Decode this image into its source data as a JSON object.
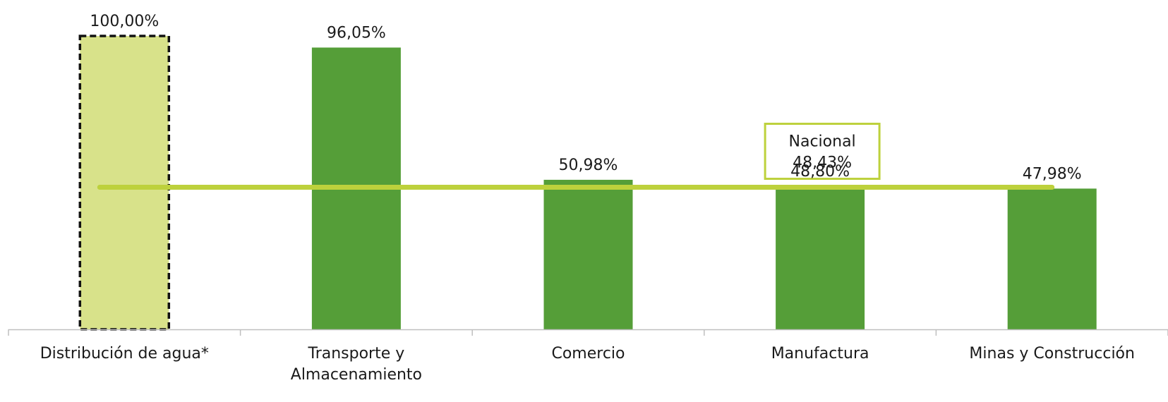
{
  "chart_data": {
    "type": "bar",
    "categories": [
      [
        "Distribución de agua*"
      ],
      [
        "Transporte y",
        "Almacenamiento"
      ],
      [
        "Comercio"
      ],
      [
        "Manufactura"
      ],
      [
        "Minas y Construcción"
      ]
    ],
    "values": [
      100.0,
      96.05,
      50.98,
      48.8,
      47.98
    ],
    "value_labels": [
      "100,00%",
      "96,05%",
      "50,98%",
      "48,80%",
      "47,98%"
    ],
    "highlighted_index": 0,
    "ylim": [
      0,
      100
    ],
    "reference_line": {
      "label": "Nacional",
      "value": 48.43,
      "value_label": "48,43%"
    },
    "colors": {
      "bar": "#559e38",
      "highlight_bar": "#d8e28a",
      "highlight_border": "#111111",
      "reference_line": "#bdd13c",
      "axis": "#bfbfbf"
    },
    "grid": false,
    "legend": "none"
  }
}
